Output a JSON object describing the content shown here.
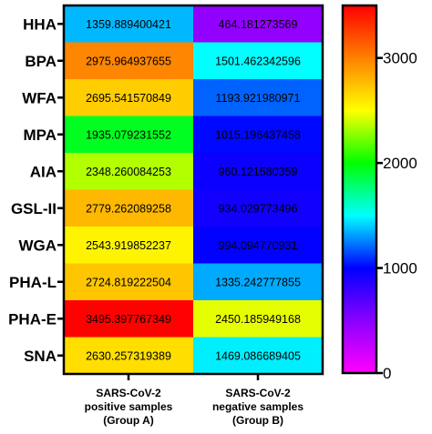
{
  "chart_data": {
    "type": "heatmap",
    "rows": [
      "HHA",
      "BPA",
      "WFA",
      "MPA",
      "AIA",
      "GSL-II",
      "WGA",
      "PHA-L",
      "PHA-E",
      "SNA"
    ],
    "columns": [
      [
        "SARS-CoV-2",
        "positive samples",
        "(Group A)"
      ],
      [
        "SARS-CoV-2",
        "negative samples",
        "(Group B)"
      ]
    ],
    "values": [
      [
        "1359.889400421",
        "464.181273569"
      ],
      [
        "2975.964937655",
        "1501.462342596"
      ],
      [
        "2695.541570849",
        "1193.921980971"
      ],
      [
        "1935.079231552",
        "1015.196437458"
      ],
      [
        "2348.260084253",
        "960.121580359"
      ],
      [
        "2779.262089258",
        "934.029773496"
      ],
      [
        "2543.919852237",
        "994.094770931"
      ],
      [
        "2724.819222504",
        "1335.242777855"
      ],
      [
        "3495.397767349",
        "2450.185949168"
      ],
      [
        "2630.257319389",
        "1469.086689405"
      ]
    ],
    "colorbar": {
      "range": [
        0,
        3500
      ],
      "ticks": [
        "0",
        "1000",
        "2000",
        "3000"
      ],
      "stops": [
        "#ff00ff",
        "#8a00ff",
        "#0000ff",
        "#00ffff",
        "#00ff00",
        "#ffff00",
        "#ff8000",
        "#ff0000"
      ],
      "placement": "right"
    }
  }
}
